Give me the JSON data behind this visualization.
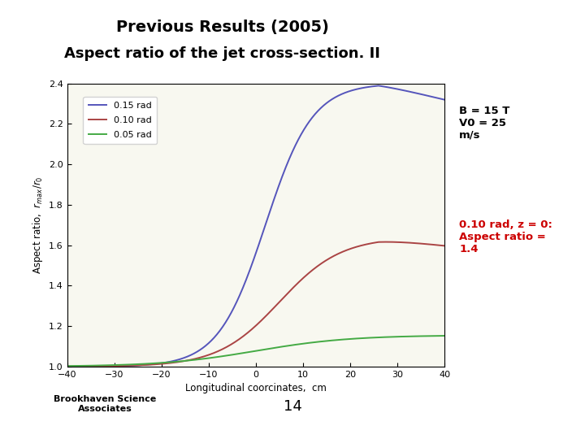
{
  "title_line1": "Previous Results (2005)",
  "title_line2": "Aspect ratio of the jet cross-section. II",
  "xlabel": "Longitudinal coorcinates,  cm",
  "ylabel": "Aspect ratio,  r_max/r_0",
  "xlim": [
    -40,
    40
  ],
  "ylim": [
    1.0,
    2.4
  ],
  "xticks": [
    -40,
    -30,
    -20,
    -10,
    0,
    10,
    20,
    30,
    40
  ],
  "yticks": [
    1.0,
    1.2,
    1.4,
    1.6,
    1.8,
    2.0,
    2.2,
    2.4
  ],
  "slide_bg": "#ffffff",
  "plot_bg": "#f8f8f0",
  "red_bar_color": "#cc1111",
  "curve_colors": [
    "#5555bb",
    "#aa4444",
    "#44aa44"
  ],
  "curve_labels": [
    "0.15 rad",
    "0.10 rad",
    "0.05 rad"
  ],
  "annotation_b": "B = 15 T\nV0 = 25\nm/s",
  "annotation_ratio": "0.10 rad, z = 0:\nAspect ratio =\n1.4",
  "annotation_ratio_color": "#cc0000",
  "page_number": "14",
  "footer_left": "Brookhaven Science\nAssociates"
}
